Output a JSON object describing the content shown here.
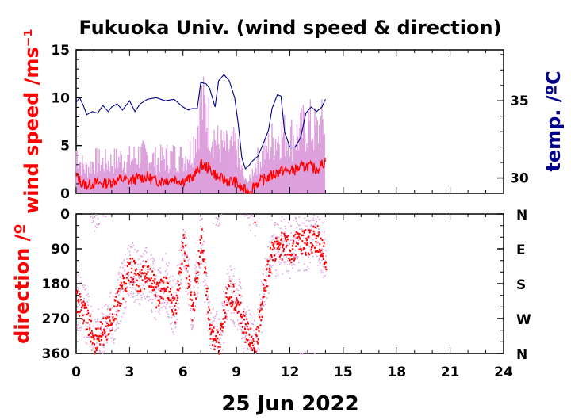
{
  "chart_data": [
    {
      "type": "line",
      "title": "Fukuoka Univ. (wind speed & direction)",
      "ylabel": "wind speed /ms⁻¹",
      "y2label": "temp. /ºC",
      "xlim": [
        0,
        24
      ],
      "ylim": [
        0,
        15
      ],
      "y2lim": [
        29,
        38.3
      ],
      "x_ticks": [
        "0",
        "3",
        "6",
        "9",
        "12",
        "15",
        "18",
        "21",
        "24"
      ],
      "y_ticks": [
        "0",
        "5",
        "10",
        "15"
      ],
      "y2_ticks": [
        "30",
        "35"
      ],
      "colors": {
        "mean": "#ff0000",
        "gust": "#dda0dd",
        "temp": "#00008b"
      },
      "series": [
        {
          "role": "wind-speed-mean",
          "x": [
            0,
            0.25,
            0.5,
            0.75,
            1,
            1.5,
            2,
            2.5,
            3,
            3.5,
            4,
            4.5,
            5,
            5.5,
            6,
            6.5,
            6.8,
            7,
            7.5,
            8,
            8.5,
            9,
            9.2,
            9.5,
            9.8,
            10,
            10.5,
            11,
            11.5,
            12,
            12.5,
            13,
            13.5,
            14
          ],
          "y": [
            1.9,
            1.2,
            0.9,
            0.9,
            1.1,
            1.0,
            1.2,
            1.5,
            1.3,
            1.6,
            1.7,
            1.3,
            1.4,
            1.5,
            1.3,
            1.6,
            2.3,
            3.0,
            2.6,
            1.6,
            1.3,
            1.2,
            0.6,
            0.3,
            0.2,
            0.9,
            1.4,
            1.9,
            2.4,
            2.3,
            2.6,
            2.9,
            2.5,
            3.4
          ]
        },
        {
          "role": "wind-speed-gust",
          "x": [
            0,
            0.25,
            0.5,
            0.75,
            1,
            1.5,
            2,
            2.5,
            3,
            3.5,
            4,
            4.5,
            5,
            5.5,
            6,
            6.5,
            6.8,
            7,
            7.5,
            8,
            8.5,
            9,
            9.2,
            9.5,
            9.8,
            10,
            10.5,
            11,
            11.5,
            12,
            12.5,
            13,
            13.5,
            14
          ],
          "y": [
            4.5,
            3.2,
            2.6,
            2.8,
            3.4,
            3.2,
            3.3,
            3.6,
            3.5,
            4.0,
            3.8,
            3.4,
            3.7,
            3.8,
            3.7,
            4.5,
            7.0,
            9.5,
            7.2,
            5.0,
            4.6,
            4.9,
            3.0,
            1.2,
            1.4,
            3.0,
            4.0,
            5.4,
            6.2,
            5.8,
            6.0,
            7.2,
            6.3,
            7.4
          ]
        },
        {
          "role": "temperature",
          "axis": "y2",
          "x": [
            0,
            0.2,
            0.4,
            0.6,
            0.9,
            1.2,
            1.5,
            1.8,
            2.0,
            2.3,
            2.6,
            3.0,
            3.3,
            3.6,
            4.0,
            4.5,
            5.0,
            5.5,
            6.0,
            6.3,
            6.5,
            6.8,
            7.0,
            7.3,
            7.5,
            7.8,
            8.0,
            8.3,
            8.6,
            8.9,
            9.1,
            9.3,
            9.5,
            9.7,
            9.9,
            10.2,
            10.5,
            10.8,
            11.0,
            11.3,
            11.5,
            11.7,
            12.0,
            12.3,
            12.6,
            12.9,
            13.2,
            13.5,
            13.8,
            14.0
          ],
          "y": [
            34.9,
            35.2,
            34.7,
            34.1,
            34.3,
            34.2,
            34.7,
            34.3,
            34.6,
            34.8,
            34.4,
            35.0,
            34.3,
            34.8,
            35.1,
            35.2,
            35.0,
            35.1,
            34.6,
            34.4,
            34.5,
            34.5,
            36.2,
            36.1,
            35.8,
            34.6,
            36.3,
            36.7,
            36.3,
            35.2,
            33.5,
            31.3,
            30.6,
            30.8,
            31.1,
            31.4,
            32.2,
            33.1,
            34.5,
            35.4,
            35.3,
            33.0,
            32.0,
            32.0,
            32.6,
            34.2,
            34.6,
            34.3,
            34.6,
            35.1
          ]
        }
      ]
    },
    {
      "type": "scatter",
      "ylabel": "direction /º",
      "xlim": [
        0,
        24
      ],
      "ylim": [
        360,
        0
      ],
      "x_ticks": [
        "0",
        "3",
        "6",
        "9",
        "12",
        "15",
        "18",
        "21",
        "24"
      ],
      "y_ticks": [
        "0",
        "90",
        "180",
        "270",
        "360"
      ],
      "y2_ticks": [
        "N",
        "E",
        "S",
        "W",
        "N"
      ],
      "xlabel": "25 Jun 2022",
      "colors": {
        "mean": "#ff0000",
        "gust": "#dda0dd"
      },
      "series": [
        {
          "role": "direction-mean",
          "x": [
            0,
            0.5,
            1,
            1.5,
            2,
            2.5,
            3,
            3.5,
            4,
            4.5,
            5,
            5.5,
            6,
            6.5,
            7,
            7.5,
            8,
            8.5,
            9,
            9.5,
            10,
            10.5,
            11,
            11.5,
            12,
            12.5,
            13,
            13.5,
            14
          ],
          "y": [
            220,
            260,
            330,
            300,
            270,
            200,
            140,
            170,
            150,
            210,
            170,
            250,
            80,
            250,
            60,
            300,
            330,
            200,
            220,
            300,
            350,
            200,
            90,
            80,
            90,
            70,
            70,
            60,
            110
          ]
        }
      ]
    }
  ],
  "date_label": "25 Jun 2022"
}
